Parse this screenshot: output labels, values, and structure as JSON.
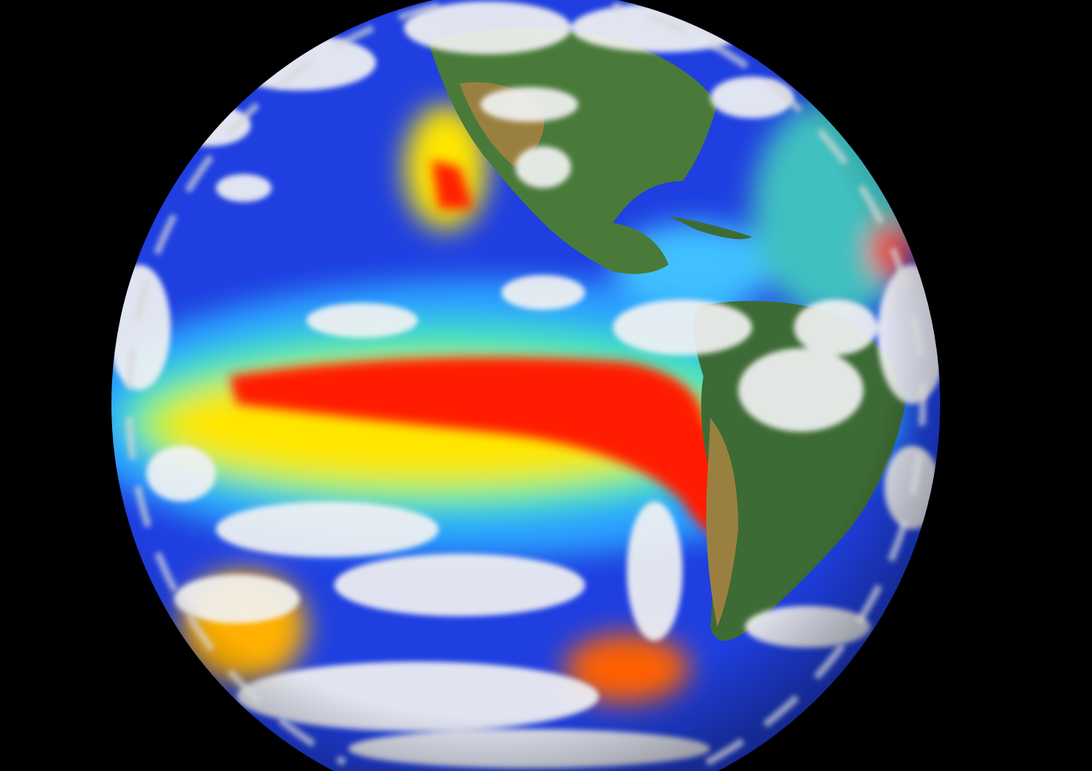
{
  "image": {
    "subject": "globe",
    "colors": {
      "background": "#000000",
      "ocean_cold": "#1f3fe0",
      "ocean_cool": "#2aa0ff",
      "ocean_mild": "#40e0c0",
      "ocean_warm": "#ffe600",
      "ocean_hot": "#ff1a00",
      "land_green": "#3d6b35",
      "land_brown": "#9a8040",
      "cloud": "#f2f2f2"
    }
  }
}
